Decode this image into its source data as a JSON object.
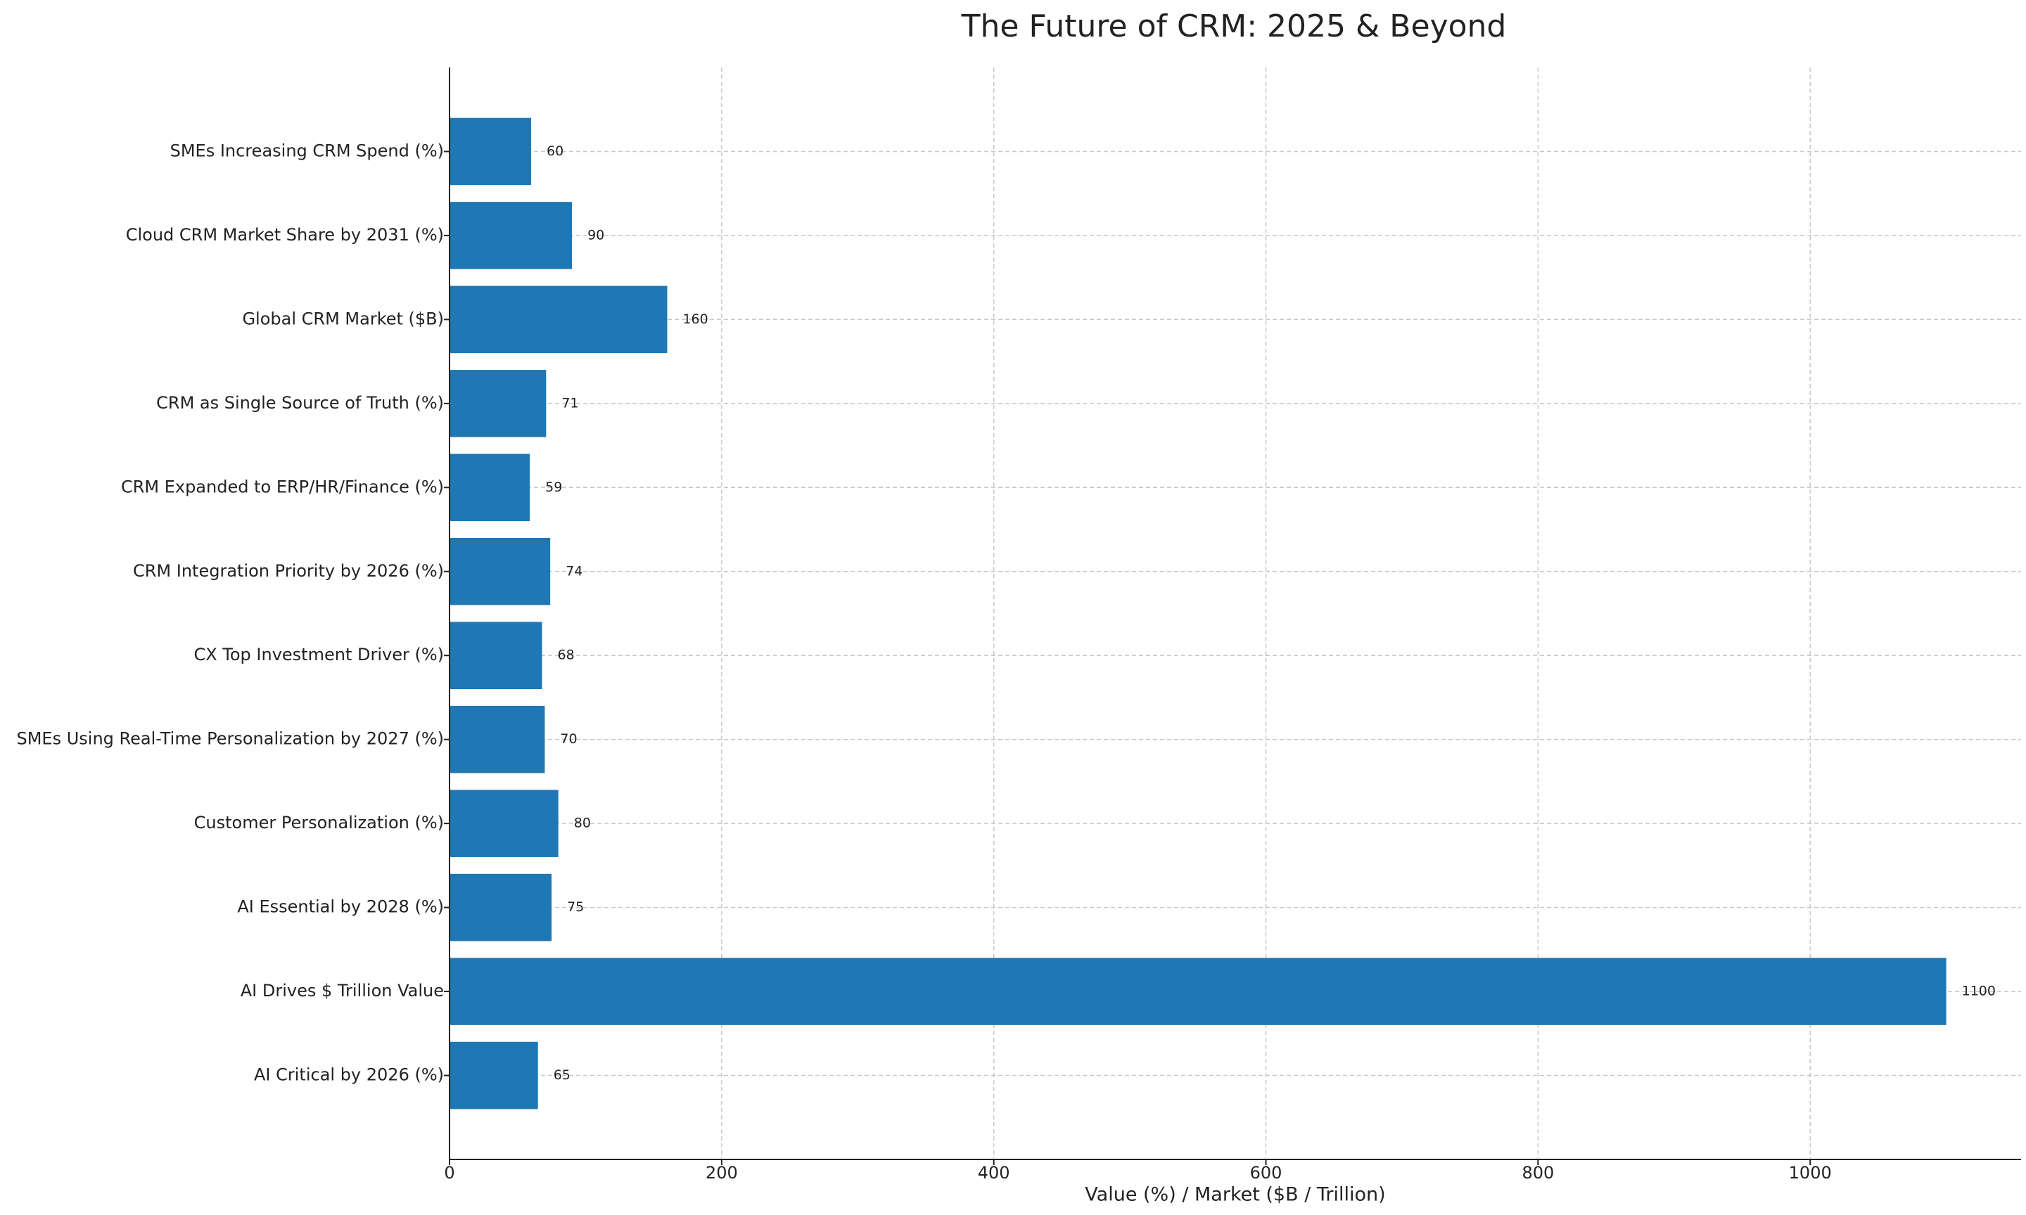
{
  "chart_data": {
    "type": "barh",
    "title": "The Future of CRM: 2025 & Beyond",
    "x_label": "Value (%) / Market ($B / Trillion)",
    "categories": [
      "AI Critical by 2026 (%)",
      "AI Drives $ Trillion Value",
      "AI Essential by 2028 (%)",
      "Customer Personalization (%)",
      "SMEs Using Real-Time Personalization by 2027 (%)",
      "CX Top Investment Driver (%)",
      "CRM Integration Priority by 2026 (%)",
      "CRM Expanded to ERP/HR/Finance (%)",
      "CRM as Single Source of Truth (%)",
      "Global CRM Market ($B)",
      "Cloud CRM Market Share by 2031 (%)",
      "SMEs Increasing CRM Spend (%)"
    ],
    "values": [
      65,
      1100,
      75,
      80,
      70,
      68,
      74,
      59,
      71,
      160,
      90,
      60
    ],
    "color": "#1f77b4",
    "xlim": [
      0,
      1155
    ],
    "xticks": [
      0,
      200,
      400,
      600,
      800,
      1000
    ],
    "grid": true
  }
}
